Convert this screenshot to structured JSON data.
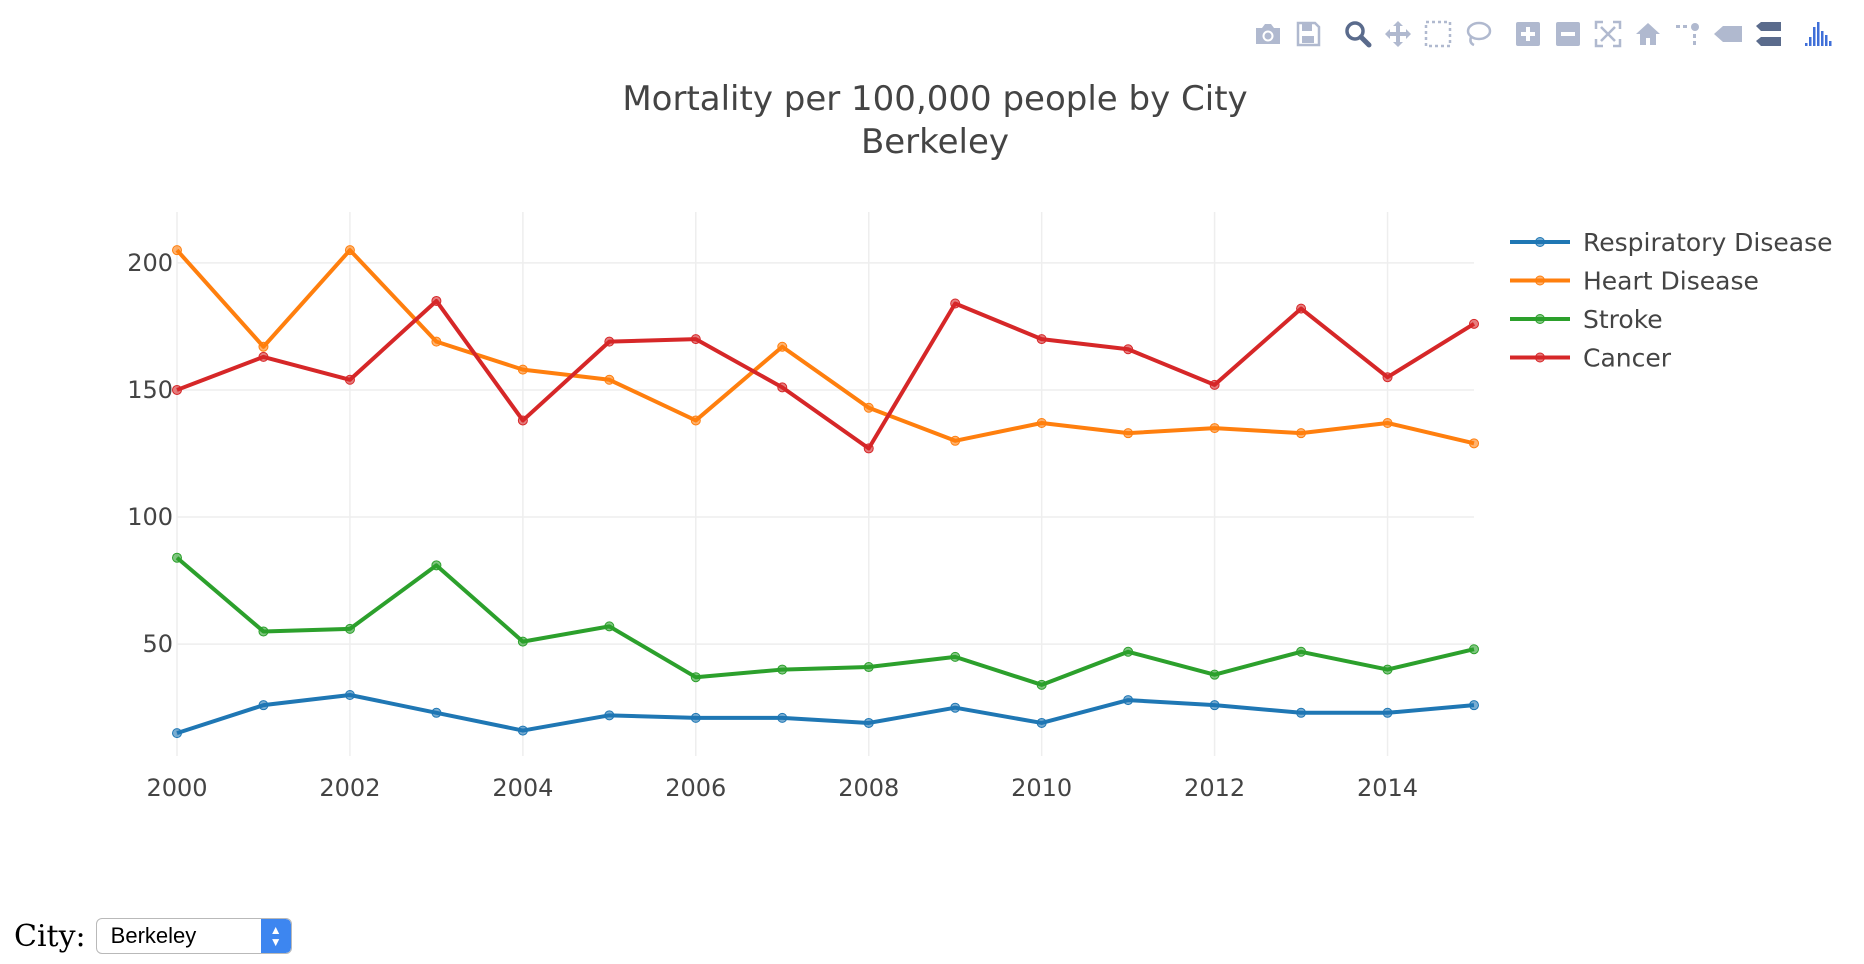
{
  "modebar": {
    "icons": [
      "camera-icon",
      "save-icon",
      "zoom-icon",
      "pan-icon",
      "box-select-icon",
      "lasso-select-icon",
      "zoom-in-icon",
      "zoom-out-icon",
      "autoscale-icon",
      "home-icon",
      "spike-lines-icon",
      "hover-closest-icon",
      "hover-compare-icon",
      "plotly-logo-icon"
    ],
    "icon_color": "#b0b9cf",
    "active_icon_color": "#5a6b8c",
    "logo_color": "#3f6fd8"
  },
  "chart_data": {
    "type": "line",
    "title": "Mortality per 100,000 people by City",
    "subtitle": "Berkeley",
    "xlabel": "",
    "ylabel": "",
    "x": [
      2000,
      2001,
      2002,
      2003,
      2004,
      2005,
      2006,
      2007,
      2008,
      2009,
      2010,
      2011,
      2012,
      2013,
      2014,
      2015
    ],
    "xlim": [
      2000,
      2015
    ],
    "ylim": [
      6,
      220
    ],
    "x_ticks": [
      2000,
      2002,
      2004,
      2006,
      2008,
      2010,
      2012,
      2014
    ],
    "y_ticks": [
      50,
      100,
      150,
      200
    ],
    "grid": true,
    "legend_position": "right",
    "series": [
      {
        "name": "Respiratory Disease",
        "color": "#1f77b4",
        "values": [
          15,
          26,
          30,
          23,
          16,
          22,
          21,
          21,
          19,
          25,
          19,
          28,
          26,
          23,
          23,
          26
        ]
      },
      {
        "name": "Heart Disease",
        "color": "#ff7f0e",
        "values": [
          205,
          167,
          205,
          169,
          158,
          154,
          138,
          167,
          143,
          130,
          137,
          133,
          135,
          133,
          137,
          129
        ]
      },
      {
        "name": "Stroke",
        "color": "#2ca02c",
        "values": [
          84,
          55,
          56,
          81,
          51,
          57,
          37,
          40,
          41,
          45,
          34,
          47,
          38,
          47,
          40,
          48
        ]
      },
      {
        "name": "Cancer",
        "color": "#d62728",
        "values": [
          150,
          163,
          154,
          185,
          138,
          169,
          170,
          151,
          127,
          184,
          170,
          166,
          152,
          182,
          155,
          176
        ]
      }
    ]
  },
  "controls": {
    "city_label": "City:",
    "city_selected": "Berkeley"
  }
}
